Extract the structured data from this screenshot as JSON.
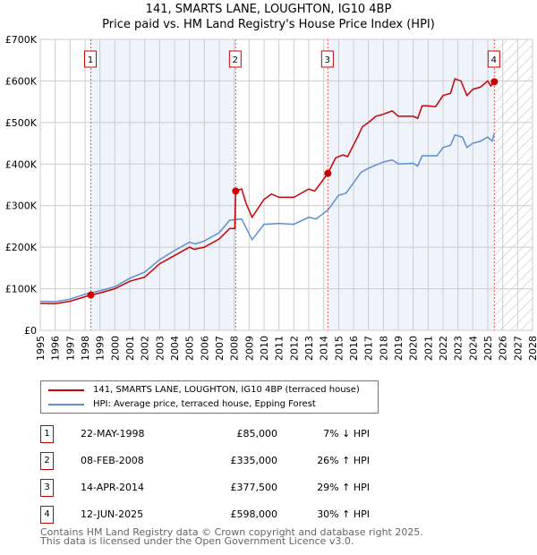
{
  "chart_data": {
    "type": "line",
    "title": "141, SMARTS LANE, LOUGHTON, IG10 4BP",
    "subtitle": "Price paid vs. HM Land Registry's House Price Index (HPI)",
    "xlim": [
      1995,
      2028
    ],
    "ylim": [
      0,
      700000
    ],
    "yticks": [
      "£0",
      "£100K",
      "£200K",
      "£300K",
      "£400K",
      "£500K",
      "£600K",
      "£700K"
    ],
    "xticks": [
      "1995",
      "1996",
      "1997",
      "1998",
      "1999",
      "2000",
      "2001",
      "2002",
      "2003",
      "2004",
      "2005",
      "2006",
      "2007",
      "2008",
      "2009",
      "2010",
      "2011",
      "2012",
      "2013",
      "2014",
      "2015",
      "2016",
      "2017",
      "2018",
      "2019",
      "2020",
      "2021",
      "2022",
      "2023",
      "2024",
      "2025",
      "2026",
      "2027",
      "2028"
    ],
    "series": [
      {
        "name": "141, SMARTS LANE, LOUGHTON, IG10 4BP (terraced house)",
        "color": "#cc0000",
        "points": [
          [
            1995,
            65
          ],
          [
            1996,
            64
          ],
          [
            1997,
            70
          ],
          [
            1998.39,
            85
          ],
          [
            1999,
            90
          ],
          [
            2000,
            100
          ],
          [
            2001,
            118
          ],
          [
            2002,
            128
          ],
          [
            2003,
            160
          ],
          [
            2004,
            180
          ],
          [
            2005,
            200
          ],
          [
            2005.3,
            195
          ],
          [
            2006,
            200
          ],
          [
            2007,
            220
          ],
          [
            2007.7,
            245
          ],
          [
            2008.05,
            245
          ],
          [
            2008.1,
            335
          ],
          [
            2008.5,
            340
          ],
          [
            2008.8,
            305
          ],
          [
            2009.2,
            272
          ],
          [
            2010,
            315
          ],
          [
            2010.5,
            328
          ],
          [
            2011,
            320
          ],
          [
            2012,
            320
          ],
          [
            2013,
            340
          ],
          [
            2013.4,
            335
          ],
          [
            2014.28,
            377.5
          ],
          [
            2014.8,
            415
          ],
          [
            2015.3,
            422
          ],
          [
            2015.6,
            418
          ],
          [
            2016.2,
            460
          ],
          [
            2016.6,
            490
          ],
          [
            2017,
            500
          ],
          [
            2017.5,
            515
          ],
          [
            2018,
            520
          ],
          [
            2018.6,
            528
          ],
          [
            2019,
            515
          ],
          [
            2020,
            515
          ],
          [
            2020.3,
            510
          ],
          [
            2020.6,
            540
          ],
          [
            2021,
            540
          ],
          [
            2021.5,
            538
          ],
          [
            2022,
            565
          ],
          [
            2022.5,
            570
          ],
          [
            2022.8,
            605
          ],
          [
            2023.2,
            600
          ],
          [
            2023.6,
            565
          ],
          [
            2024,
            580
          ],
          [
            2024.5,
            585
          ],
          [
            2025,
            600
          ],
          [
            2025.2,
            588
          ],
          [
            2025.44,
            598
          ]
        ]
      },
      {
        "name": "HPI: Average price, terraced house, Epping Forest",
        "color": "#5b8fd4",
        "points": [
          [
            1995,
            70
          ],
          [
            1996,
            69
          ],
          [
            1997,
            75
          ],
          [
            1998,
            87
          ],
          [
            1999,
            95
          ],
          [
            2000,
            105
          ],
          [
            2001,
            125
          ],
          [
            2002,
            140
          ],
          [
            2003,
            170
          ],
          [
            2004,
            192
          ],
          [
            2005,
            212
          ],
          [
            2005.4,
            208
          ],
          [
            2006,
            215
          ],
          [
            2007,
            235
          ],
          [
            2007.7,
            265
          ],
          [
            2008.5,
            268
          ],
          [
            2009.2,
            218
          ],
          [
            2010,
            255
          ],
          [
            2011,
            257
          ],
          [
            2012,
            255
          ],
          [
            2013,
            272
          ],
          [
            2013.5,
            268
          ],
          [
            2014.3,
            290
          ],
          [
            2015,
            325
          ],
          [
            2015.5,
            330
          ],
          [
            2016.5,
            380
          ],
          [
            2017,
            390
          ],
          [
            2018,
            405
          ],
          [
            2018.6,
            410
          ],
          [
            2019,
            400
          ],
          [
            2020,
            402
          ],
          [
            2020.3,
            395
          ],
          [
            2020.6,
            420
          ],
          [
            2021,
            420
          ],
          [
            2021.6,
            420
          ],
          [
            2022,
            440
          ],
          [
            2022.5,
            445
          ],
          [
            2022.8,
            470
          ],
          [
            2023.3,
            465
          ],
          [
            2023.6,
            440
          ],
          [
            2024,
            450
          ],
          [
            2024.5,
            455
          ],
          [
            2025,
            465
          ],
          [
            2025.3,
            455
          ],
          [
            2025.44,
            475
          ]
        ]
      }
    ],
    "sales": [
      {
        "label": "1",
        "x": 1998.39,
        "y": 85
      },
      {
        "label": "2",
        "x": 2008.1,
        "y": 335
      },
      {
        "label": "3",
        "x": 2014.28,
        "y": 377.5
      },
      {
        "label": "4",
        "x": 2025.44,
        "y": 598
      }
    ],
    "legend_position": "below",
    "grid": true
  },
  "legend": [
    "141, SMARTS LANE, LOUGHTON, IG10 4BP (terraced house)",
    "HPI: Average price, terraced house, Epping Forest"
  ],
  "table": [
    {
      "n": "1",
      "date": "22-MAY-1998",
      "price": "£85,000",
      "hpi": "7% ↓ HPI"
    },
    {
      "n": "2",
      "date": "08-FEB-2008",
      "price": "£335,000",
      "hpi": "26% ↑ HPI"
    },
    {
      "n": "3",
      "date": "14-APR-2014",
      "price": "£377,500",
      "hpi": "29% ↑ HPI"
    },
    {
      "n": "4",
      "date": "12-JUN-2025",
      "price": "£598,000",
      "hpi": "30% ↑ HPI"
    }
  ],
  "footer": [
    "Contains HM Land Registry data © Crown copyright and database right 2025.",
    "This data is licensed under the Open Government Licence v3.0."
  ]
}
